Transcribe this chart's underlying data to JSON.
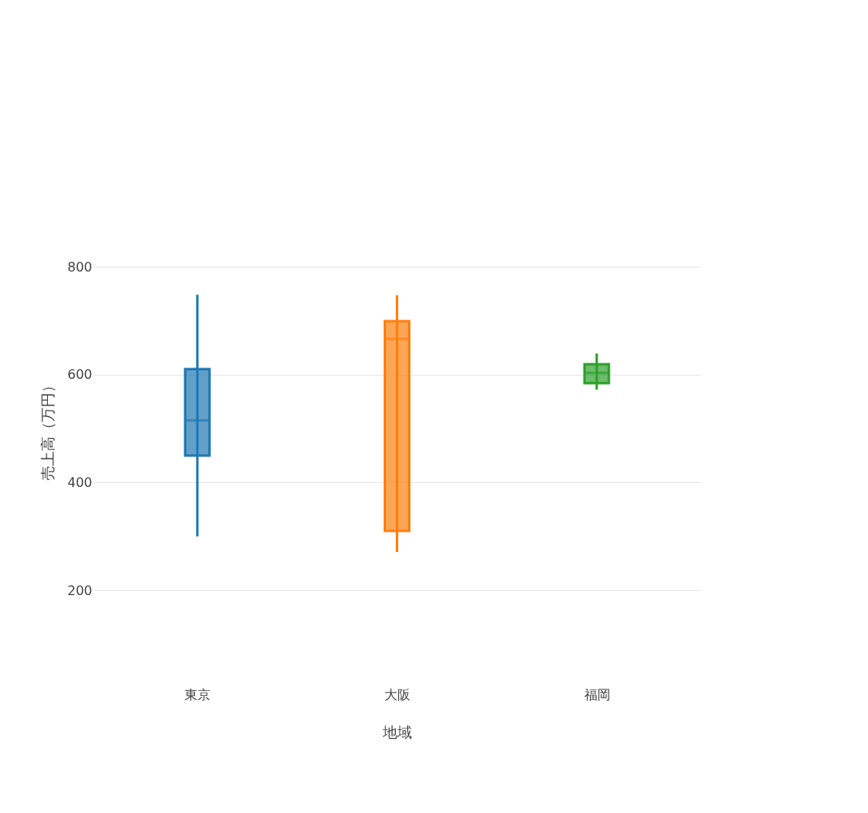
{
  "chart_data": {
    "type": "box",
    "xlabel": "地域",
    "ylabel": "売上高（万円）",
    "categories": [
      "東京",
      "大阪",
      "福岡"
    ],
    "colors": [
      "#1f77b4",
      "#ff7f0e",
      "#2ca02c"
    ],
    "boxes": [
      {
        "low": 300,
        "q1": 450,
        "median": 515,
        "q3": 610,
        "high": 748
      },
      {
        "low": 271,
        "q1": 310,
        "median": 666,
        "q3": 699,
        "high": 747
      },
      {
        "low": 572,
        "q1": 584,
        "median": 603,
        "q3": 619,
        "high": 639
      }
    ],
    "ylim": [
      200,
      800
    ],
    "yticks": [
      200,
      400,
      600,
      800
    ],
    "grid": "y"
  }
}
